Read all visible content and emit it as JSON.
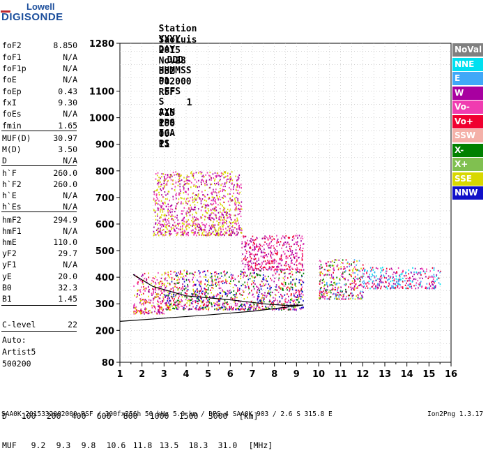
{
  "logo": {
    "top": "Lowell",
    "bottom": "DIGISONDE"
  },
  "header": {
    "labels": [
      "Station",
      "YYYY",
      "DAY",
      "DDD",
      "HHMMSS",
      "P1",
      "FFS",
      "S",
      "AXN",
      "PPS",
      "IGA",
      "PS"
    ],
    "values": [
      "SaoLuis",
      "2015",
      "Nov28",
      "332",
      "002000",
      "RSF",
      "1",
      "715",
      "100",
      "00-",
      "11"
    ]
  },
  "parameters": [
    {
      "name": "foF2",
      "value": "8.850"
    },
    {
      "name": "foF1",
      "value": "N/A"
    },
    {
      "name": "foF1p",
      "value": "N/A"
    },
    {
      "name": "foE",
      "value": "N/A"
    },
    {
      "name": "foEp",
      "value": "0.43"
    },
    {
      "name": "fxI",
      "value": "9.30"
    },
    {
      "name": "foEs",
      "value": "N/A"
    },
    {
      "name": "fmin",
      "value": "1.65"
    },
    {
      "name": "MUF(D)",
      "value": "30.97"
    },
    {
      "name": "M(D)",
      "value": "3.50"
    },
    {
      "name": "D",
      "value": "N/A"
    },
    {
      "name": "h`F",
      "value": "260.0"
    },
    {
      "name": "h`F2",
      "value": "260.0"
    },
    {
      "name": "h`E",
      "value": "N/A"
    },
    {
      "name": "h`Es",
      "value": "N/A"
    },
    {
      "name": "hmF2",
      "value": "294.9"
    },
    {
      "name": "hmF1",
      "value": "N/A"
    },
    {
      "name": "hmE",
      "value": "110.0"
    },
    {
      "name": "yF2",
      "value": "29.7"
    },
    {
      "name": "yF1",
      "value": "N/A"
    },
    {
      "name": "yE",
      "value": "20.0"
    },
    {
      "name": "B0",
      "value": "32.3"
    },
    {
      "name": "B1",
      "value": "1.45"
    }
  ],
  "c_level": {
    "name": "C-level",
    "value": "22"
  },
  "auto": [
    "Auto:",
    "Artist5",
    "500200"
  ],
  "legend": [
    {
      "label": "NoVal",
      "color": "#808080"
    },
    {
      "label": "NNE",
      "color": "#00e0f0"
    },
    {
      "label": "E",
      "color": "#40a8f8"
    },
    {
      "label": "W",
      "color": "#a800a0"
    },
    {
      "label": "Vo-",
      "color": "#f03cb0"
    },
    {
      "label": "Vo+",
      "color": "#f00030"
    },
    {
      "label": "SSW",
      "color": "#f4b0a8"
    },
    {
      "label": "X-",
      "color": "#008000"
    },
    {
      "label": "X+",
      "color": "#80c050"
    },
    {
      "label": "SSE",
      "color": "#d8d800"
    },
    {
      "label": "NNW",
      "color": "#1010c8"
    }
  ],
  "muf_table": {
    "d_label": "D",
    "d_values": [
      "100",
      "200",
      "400",
      "600",
      "800",
      "1000",
      "1500",
      "3000",
      "[km]"
    ],
    "muf_label": "MUF",
    "muf_values": [
      "9.2",
      "9.3",
      "9.8",
      "10.6",
      "11.8",
      "13.5",
      "18.3",
      "31.0",
      "[MHz]"
    ]
  },
  "footer": {
    "left": "SAA0K_2015332002000.RSF / 300fx256h 50 kHz 5.0 km / DPS-4 SAA0K 903 / 2.6 S 315.8 E",
    "right": "Ion2Png 1.3.17"
  },
  "chart_data": {
    "type": "scatter",
    "title": "",
    "xlabel": "",
    "ylabel": "",
    "xlim": [
      1,
      16
    ],
    "ylim": [
      80,
      1280
    ],
    "x_ticks": [
      1,
      2,
      3,
      4,
      5,
      6,
      7,
      8,
      9,
      10,
      11,
      12,
      13,
      14,
      15,
      16
    ],
    "y_ticks": [
      80,
      200,
      300,
      400,
      500,
      600,
      700,
      800,
      900,
      1000,
      1100,
      1280
    ],
    "grid": true,
    "echo_clusters": [
      {
        "x_range": [
          1.6,
          3.0
        ],
        "h_range": [
          265,
          420
        ],
        "colors": [
          "#f00030",
          "#f03cb0",
          "#a800a0",
          "#d8d800"
        ]
      },
      {
        "x_range": [
          2.5,
          6.5
        ],
        "h_range": [
          560,
          800
        ],
        "colors": [
          "#d8d800",
          "#a800a0",
          "#f03cb0"
        ]
      },
      {
        "x_range": [
          3.0,
          9.3
        ],
        "h_range": [
          280,
          430
        ],
        "colors": [
          "#f00030",
          "#f03cb0",
          "#a800a0",
          "#d8d800",
          "#008000",
          "#1010c8"
        ]
      },
      {
        "x_range": [
          6.5,
          9.3
        ],
        "h_range": [
          430,
          560
        ],
        "colors": [
          "#f00030",
          "#f03cb0",
          "#a800a0"
        ]
      },
      {
        "x_range": [
          10.0,
          12.0
        ],
        "h_range": [
          320,
          470
        ],
        "colors": [
          "#f00030",
          "#f03cb0",
          "#40a8f8",
          "#008000",
          "#d8d800",
          "#a800a0"
        ]
      },
      {
        "x_range": [
          12.0,
          15.5
        ],
        "h_range": [
          360,
          440
        ],
        "colors": [
          "#40a8f8",
          "#a800a0",
          "#f03cb0",
          "#00e0f0",
          "#f00030"
        ]
      }
    ],
    "fitted_profile": {
      "x": [
        1.0,
        3.0,
        5.0,
        7.0,
        8.0,
        9.0,
        9.3
      ],
      "y": [
        234,
        246,
        258,
        272,
        282,
        292,
        296
      ]
    },
    "ordinary_trace": {
      "x": [
        1.6,
        2.5,
        4.0,
        6.0,
        7.5,
        8.5,
        9.3
      ],
      "y": [
        410,
        365,
        330,
        315,
        300,
        294,
        295
      ]
    }
  }
}
